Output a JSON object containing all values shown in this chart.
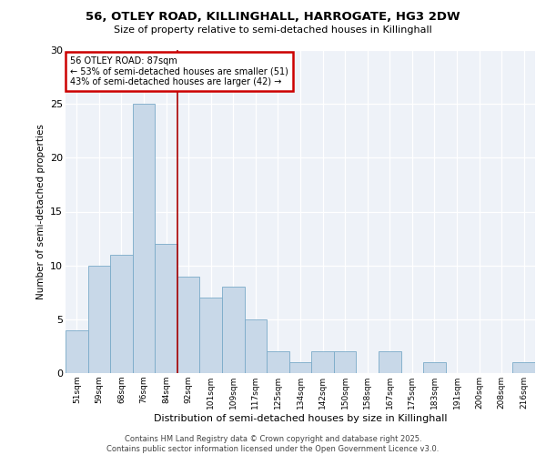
{
  "title1": "56, OTLEY ROAD, KILLINGHALL, HARROGATE, HG3 2DW",
  "title2": "Size of property relative to semi-detached houses in Killinghall",
  "xlabel": "Distribution of semi-detached houses by size in Killinghall",
  "ylabel": "Number of semi-detached properties",
  "categories": [
    "51sqm",
    "59sqm",
    "68sqm",
    "76sqm",
    "84sqm",
    "92sqm",
    "101sqm",
    "109sqm",
    "117sqm",
    "125sqm",
    "134sqm",
    "142sqm",
    "150sqm",
    "158sqm",
    "167sqm",
    "175sqm",
    "183sqm",
    "191sqm",
    "200sqm",
    "208sqm",
    "216sqm"
  ],
  "values": [
    4,
    10,
    11,
    25,
    12,
    9,
    7,
    8,
    5,
    2,
    1,
    2,
    2,
    0,
    2,
    0,
    1,
    0,
    0,
    0,
    1
  ],
  "bar_color": "#c8d8e8",
  "bar_edge_color": "#7aaac8",
  "annotation_title": "56 OTLEY ROAD: 87sqm",
  "annotation_line1": "← 53% of semi-detached houses are smaller (51)",
  "annotation_line2": "43% of semi-detached houses are larger (42) →",
  "red_line_x": 4.5,
  "annotation_box_color": "#ffffff",
  "annotation_border_color": "#cc0000",
  "footer_line1": "Contains HM Land Registry data © Crown copyright and database right 2025.",
  "footer_line2": "Contains public sector information licensed under the Open Government Licence v3.0.",
  "ylim": [
    0,
    30
  ],
  "yticks": [
    0,
    5,
    10,
    15,
    20,
    25,
    30
  ],
  "bg_color": "#eef2f8"
}
